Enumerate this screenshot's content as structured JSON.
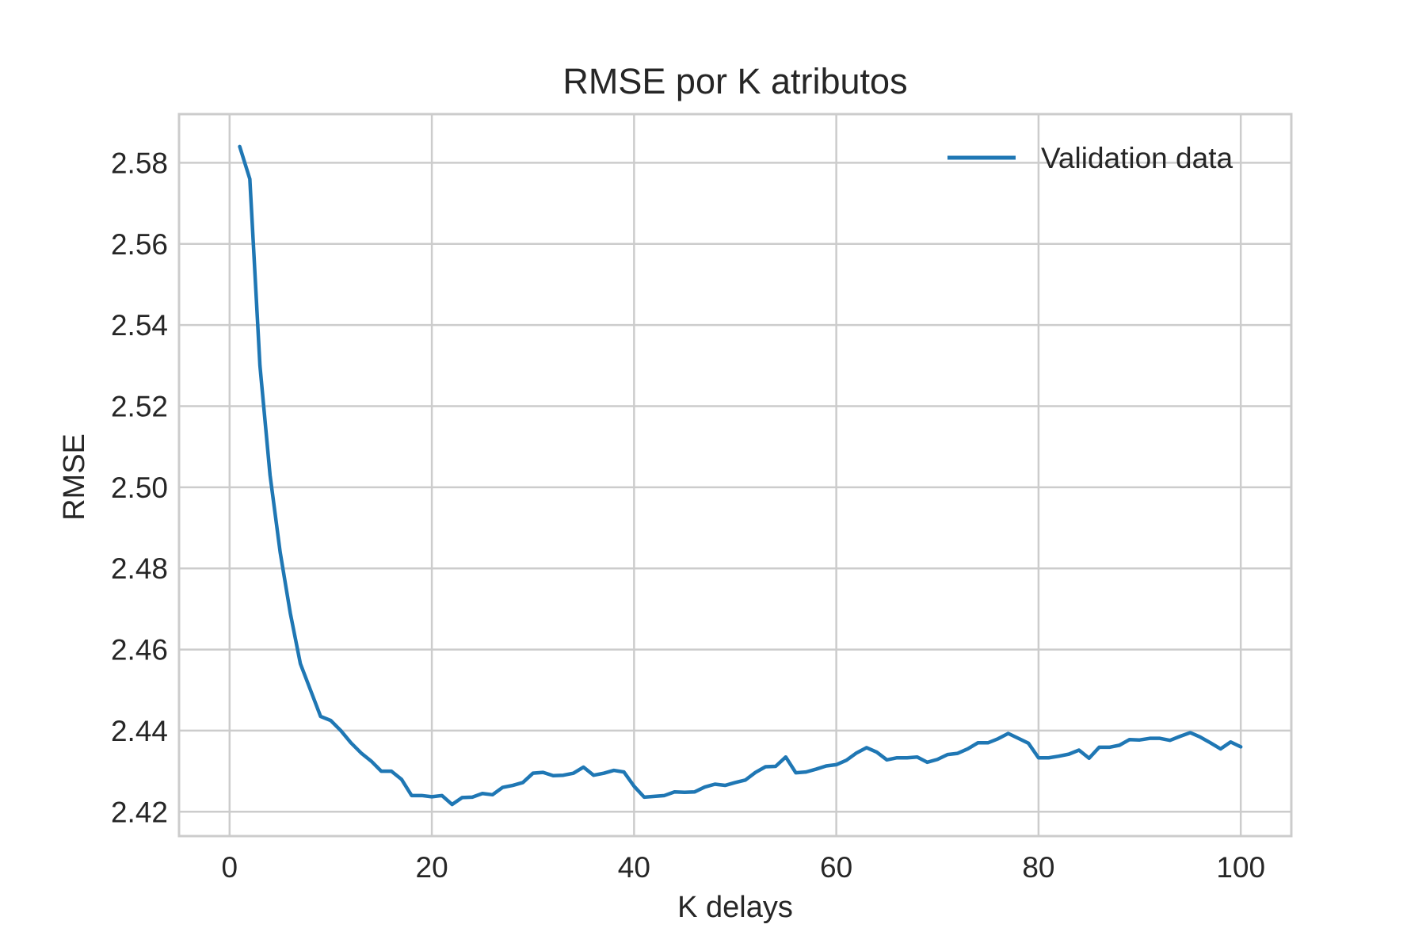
{
  "chart_data": {
    "type": "line",
    "title": "RMSE por K atributos",
    "xlabel": "K delays",
    "ylabel": "RMSE",
    "xlim": [
      -5,
      105
    ],
    "ylim": [
      2.414,
      2.592
    ],
    "xticks": [
      0,
      20,
      40,
      60,
      80,
      100
    ],
    "xtick_labels": [
      "0",
      "20",
      "40",
      "60",
      "80",
      "100"
    ],
    "yticks": [
      2.42,
      2.44,
      2.46,
      2.48,
      2.5,
      2.52,
      2.54,
      2.56,
      2.58
    ],
    "ytick_labels": [
      "2.42",
      "2.44",
      "2.46",
      "2.48",
      "2.50",
      "2.52",
      "2.54",
      "2.56",
      "2.58"
    ],
    "grid": true,
    "legend": {
      "position": "top-right"
    },
    "series": [
      {
        "name": "Validation data",
        "color": "#1f77b4",
        "x": [
          1,
          2,
          3,
          4,
          5,
          6,
          7,
          8,
          9,
          10,
          11,
          12,
          13,
          14,
          15,
          16,
          17,
          18,
          19,
          20,
          21,
          22,
          23,
          24,
          25,
          26,
          27,
          28,
          29,
          30,
          31,
          32,
          33,
          34,
          35,
          36,
          37,
          38,
          39,
          40,
          41,
          42,
          43,
          44,
          45,
          46,
          47,
          48,
          49,
          50,
          51,
          52,
          53,
          54,
          55,
          56,
          57,
          58,
          59,
          60,
          61,
          62,
          63,
          64,
          65,
          66,
          67,
          68,
          69,
          70,
          71,
          72,
          73,
          74,
          75,
          76,
          77,
          78,
          79,
          80,
          81,
          82,
          83,
          84,
          85,
          86,
          87,
          88,
          89,
          90,
          91,
          92,
          93,
          94,
          95,
          96,
          97,
          98,
          99,
          100
        ],
        "values": [
          2.584,
          2.576,
          2.53,
          2.503,
          2.484,
          2.469,
          2.4565,
          2.45,
          2.4435,
          2.4425,
          2.44,
          2.437,
          2.4345,
          2.4325,
          2.43,
          2.43,
          2.428,
          2.424,
          2.424,
          2.4237,
          2.424,
          2.4218,
          2.4235,
          2.4236,
          2.4245,
          2.4242,
          2.426,
          2.4265,
          2.4272,
          2.4295,
          2.4297,
          2.4289,
          2.429,
          2.4295,
          2.431,
          2.429,
          2.4295,
          2.4302,
          2.4298,
          2.4263,
          2.4236,
          2.4238,
          2.424,
          2.4249,
          2.4248,
          2.4249,
          2.4261,
          2.4268,
          2.4265,
          2.4272,
          2.4278,
          2.4297,
          2.4311,
          2.4312,
          2.4335,
          2.4296,
          2.4298,
          2.4305,
          2.4313,
          2.4316,
          2.4327,
          2.4345,
          2.4358,
          2.4347,
          2.4328,
          2.4333,
          2.4333,
          2.4335,
          2.4322,
          2.4329,
          2.4341,
          2.4344,
          2.4355,
          2.437,
          2.437,
          2.438,
          2.4393,
          2.4381,
          2.4369,
          2.4333,
          2.4333,
          2.4337,
          2.4342,
          2.4352,
          2.4332,
          2.4359,
          2.4359,
          2.4364,
          2.4378,
          2.4377,
          2.4381,
          2.4381,
          2.4376,
          2.4386,
          2.4395,
          2.4384,
          2.437,
          2.4355,
          2.4372,
          2.436
        ]
      }
    ]
  }
}
